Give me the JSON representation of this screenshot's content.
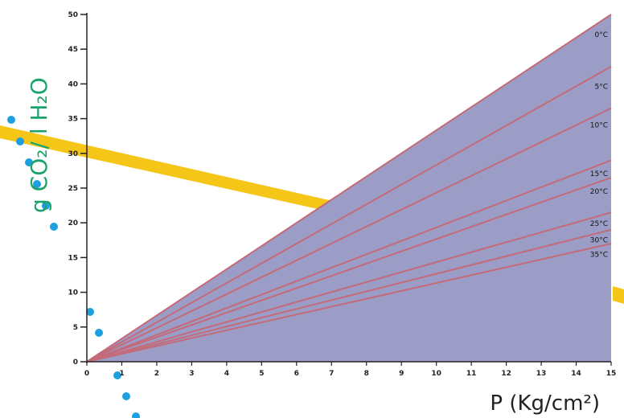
{
  "chart_data": {
    "type": "line",
    "title": "",
    "xlabel": "P (Kg/cm²)",
    "ylabel": "g CO₂/ l H₂O",
    "xlim": [
      0,
      15
    ],
    "ylim": [
      0,
      50
    ],
    "x_ticks": [
      "0",
      "1",
      "2",
      "3",
      "4",
      "5",
      "6",
      "7",
      "8",
      "9",
      "10",
      "11",
      "12",
      "13",
      "14",
      "15"
    ],
    "y_ticks": [
      "0",
      "5",
      "10",
      "15",
      "20",
      "25",
      "30",
      "35",
      "40",
      "45",
      "50"
    ],
    "grid": false,
    "series": [
      {
        "name": "0°C",
        "x": [
          0,
          15
        ],
        "y": [
          0,
          50
        ]
      },
      {
        "name": "5°C",
        "x": [
          0,
          15
        ],
        "y": [
          0,
          42.5
        ]
      },
      {
        "name": "10°C",
        "x": [
          0,
          15
        ],
        "y": [
          0,
          36.5
        ]
      },
      {
        "name": "15°C",
        "x": [
          0,
          15
        ],
        "y": [
          0,
          29
        ]
      },
      {
        "name": "20°C",
        "x": [
          0,
          15
        ],
        "y": [
          0,
          26.5
        ]
      },
      {
        "name": "25°C",
        "x": [
          0,
          15
        ],
        "y": [
          0,
          21.5
        ]
      },
      {
        "name": "30°C",
        "x": [
          0,
          15
        ],
        "y": [
          0,
          19
        ]
      },
      {
        "name": "35°C",
        "x": [
          0,
          15
        ],
        "y": [
          0,
          17
        ]
      }
    ],
    "colors": {
      "fill": "#9b9dc6",
      "line": "#c46a78",
      "axis": "#222222",
      "ylabel": "#1aa36b",
      "decor_band": "#f5c518",
      "decor_dots": "#1ea0e0"
    }
  }
}
